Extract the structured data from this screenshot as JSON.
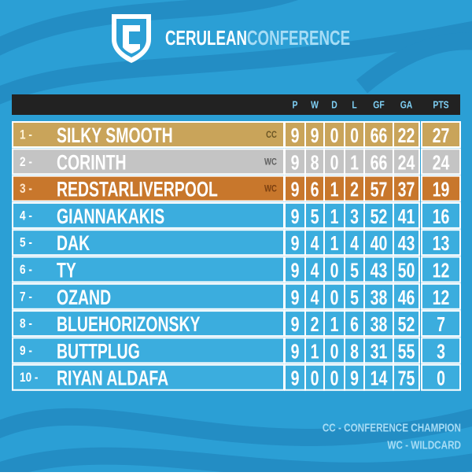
{
  "header": {
    "title_first": "CERULEAN",
    "title_second": "CONFERENCE"
  },
  "table": {
    "columns": [
      "P",
      "W",
      "D",
      "L",
      "GF",
      "GA",
      "PTS"
    ],
    "rows": [
      {
        "rank": "1 -",
        "team": "SILKY SMOOTH",
        "badge": "CC",
        "stats": [
          9,
          9,
          0,
          0,
          66,
          22,
          27
        ]
      },
      {
        "rank": "2 -",
        "team": "CORINTH",
        "badge": "WC",
        "stats": [
          9,
          8,
          0,
          1,
          66,
          24,
          24
        ]
      },
      {
        "rank": "3 -",
        "team": "REDSTARLIVERPOOL",
        "badge": "WC",
        "stats": [
          9,
          6,
          1,
          2,
          57,
          37,
          19
        ]
      },
      {
        "rank": "4 -",
        "team": "GIANNAKAKIS",
        "stats": [
          9,
          5,
          1,
          3,
          52,
          41,
          16
        ]
      },
      {
        "rank": "5 -",
        "team": "DAK",
        "stats": [
          9,
          4,
          1,
          4,
          40,
          43,
          13
        ]
      },
      {
        "rank": "6 -",
        "team": "TY",
        "stats": [
          9,
          4,
          0,
          5,
          43,
          50,
          12
        ]
      },
      {
        "rank": "7 -",
        "team": "OZAND",
        "stats": [
          9,
          4,
          0,
          5,
          38,
          46,
          12
        ]
      },
      {
        "rank": "8 -",
        "team": "BLUEHORIZONSKY",
        "stats": [
          9,
          2,
          1,
          6,
          38,
          52,
          7
        ]
      },
      {
        "rank": "9 -",
        "team": "BUTTPLUG",
        "stats": [
          9,
          1,
          0,
          8,
          31,
          55,
          3
        ]
      },
      {
        "rank": "10 -",
        "team": "RIYAN ALDAFA",
        "stats": [
          9,
          0,
          0,
          9,
          14,
          75,
          0
        ]
      }
    ]
  },
  "legend": [
    "CC - CONFERENCE CHAMPION",
    "WC - WILDCARD"
  ]
}
